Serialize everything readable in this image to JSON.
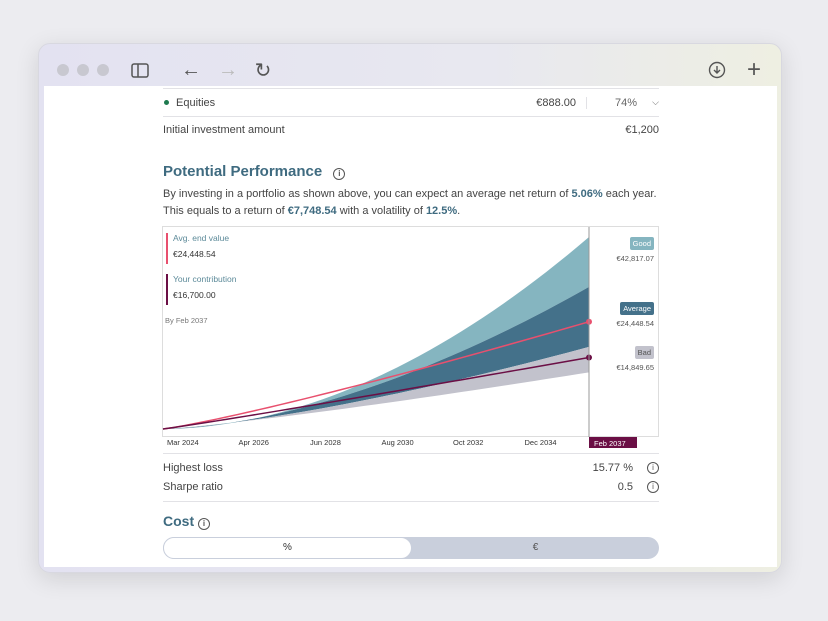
{
  "browser": {
    "icons": [
      "sidebar-icon",
      "back-arrow-icon",
      "forward-arrow-icon",
      "reload-icon",
      "download-icon",
      "plus-icon"
    ]
  },
  "allocation": {
    "name": "Equities",
    "amount": "€888.00",
    "percent": "74%",
    "dot_color": "#1e7a4f"
  },
  "initial": {
    "label": "Initial investment amount",
    "value": "€1,200"
  },
  "performance": {
    "title": "Potential Performance",
    "line1_a": "By investing in a portfolio as shown above, you can expect an average net return of ",
    "line1_b": "5.06%",
    "line1_c": " each year.",
    "line2_a": "This equals to a return of ",
    "line2_b": "€7,748.54",
    "line2_c": " with a volatility of ",
    "line2_d": "12.5%",
    "line2_e": "."
  },
  "chart_data": {
    "type": "area",
    "x_ticks": [
      "Mar 2024",
      "Apr 2026",
      "Jun 2028",
      "Aug 2030",
      "Oct 2032",
      "Dec 2034"
    ],
    "end_label": "Feb 2037",
    "start_value": 1200,
    "legend": {
      "avg_label": "Avg. end value",
      "avg_value": "€24,448.54",
      "contrib_label": "Your contribution",
      "contrib_value": "€16,700.00",
      "by": "By Feb 2037"
    },
    "scenarios": {
      "good": {
        "label": "Good",
        "value": "€42,817.07",
        "end": 42817.07,
        "color": "#85b5c0"
      },
      "average": {
        "label": "Average",
        "value": "€24,448.54",
        "end": 24448.54,
        "color": "#44718a"
      },
      "bad": {
        "label": "Bad",
        "value": "€14,849.65",
        "end": 14849.65,
        "color": "#c2c2cc"
      }
    },
    "mid_band": {
      "upper_end": 32000,
      "lower_end": 19000
    },
    "series": [
      {
        "name": "Avg. end value",
        "end": 24448.54,
        "color": "#e8506e"
      },
      {
        "name": "Your contribution",
        "end": 16700,
        "color": "#6b0f45"
      }
    ]
  },
  "metrics": [
    {
      "label": "Highest loss",
      "value": "15.77 %"
    },
    {
      "label": "Sharpe ratio",
      "value": "0.5"
    }
  ],
  "cost": {
    "title": "Cost",
    "options": [
      "%",
      "€"
    ],
    "selected": "%"
  }
}
